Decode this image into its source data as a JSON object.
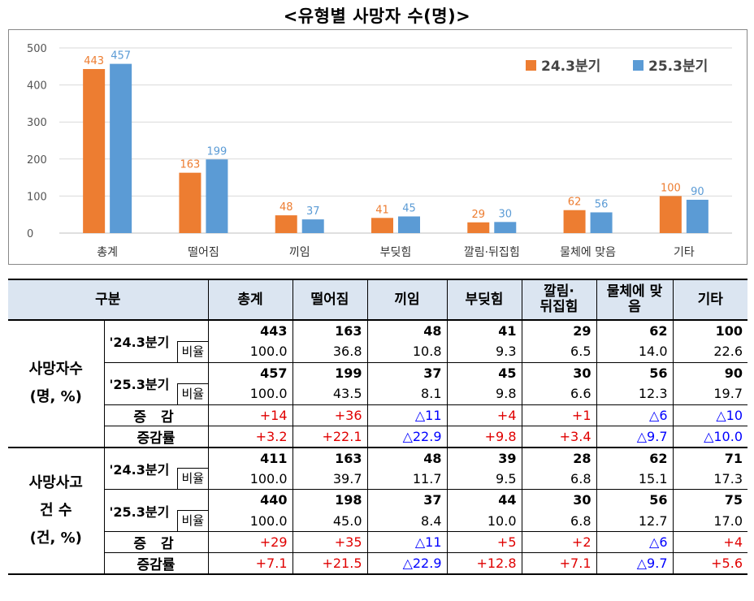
{
  "title": "<유형별 사망자 수(명)>",
  "chart_data": {
    "type": "bar",
    "categories": [
      "총계",
      "떨어짐",
      "끼임",
      "부딪힘",
      "깔림·뒤집힘",
      "물체에 맞음",
      "기타"
    ],
    "series": [
      {
        "name": "24.3분기",
        "color": "#ed7d31",
        "values": [
          443,
          163,
          48,
          41,
          29,
          62,
          100
        ]
      },
      {
        "name": "25.3분기",
        "color": "#5b9bd5",
        "values": [
          457,
          199,
          37,
          45,
          30,
          56,
          90
        ]
      }
    ],
    "ylim": [
      0,
      500
    ],
    "yticks": [
      0,
      100,
      200,
      300,
      400,
      500
    ],
    "legend": "top-right",
    "grid": true
  },
  "table": {
    "header": [
      "구분",
      "총계",
      "떨어짐",
      "끼임",
      "부딪힘",
      "깔림·\n뒤집힘",
      "물체에 맞음",
      "기타"
    ],
    "sections": [
      {
        "label_lines": [
          "사망자수",
          "(명, %)"
        ],
        "q1_label": "'24.3분기",
        "q1_counts": [
          "443",
          "163",
          "48",
          "41",
          "29",
          "62",
          "100"
        ],
        "q1_ratio_label": "비율",
        "q1_ratios": [
          "100.0",
          "36.8",
          "10.8",
          "9.3",
          "6.5",
          "14.0",
          "22.6"
        ],
        "q2_label": "'25.3분기",
        "q2_counts": [
          "457",
          "199",
          "37",
          "45",
          "30",
          "56",
          "90"
        ],
        "q2_ratio_label": "비율",
        "q2_ratios": [
          "100.0",
          "43.5",
          "8.1",
          "9.8",
          "6.6",
          "12.3",
          "19.7"
        ],
        "change_label": "증 감",
        "changes": [
          "+14",
          "+36",
          "△11",
          "+4",
          "+1",
          "△6",
          "△10"
        ],
        "rate_label": "증감률",
        "rates": [
          "+3.2",
          "+22.1",
          "△22.9",
          "+9.8",
          "+3.4",
          "△9.7",
          "△10.0"
        ]
      },
      {
        "label_lines": [
          "사망사고",
          "건 수",
          "(건, %)"
        ],
        "q1_label": "'24.3분기",
        "q1_counts": [
          "411",
          "163",
          "48",
          "39",
          "28",
          "62",
          "71"
        ],
        "q1_ratio_label": "비율",
        "q1_ratios": [
          "100.0",
          "39.7",
          "11.7",
          "9.5",
          "6.8",
          "15.1",
          "17.3"
        ],
        "q2_label": "'25.3분기",
        "q2_counts": [
          "440",
          "198",
          "37",
          "44",
          "30",
          "56",
          "75"
        ],
        "q2_ratio_label": "비율",
        "q2_ratios": [
          "100.0",
          "45.0",
          "8.4",
          "10.0",
          "6.8",
          "12.7",
          "17.0"
        ],
        "change_label": "증 감",
        "changes": [
          "+29",
          "+35",
          "△11",
          "+5",
          "+2",
          "△6",
          "+4"
        ],
        "rate_label": "증감률",
        "rates": [
          "+7.1",
          "+21.5",
          "△22.9",
          "+12.8",
          "+7.1",
          "△9.7",
          "+5.6"
        ]
      }
    ],
    "increase_color": "#e00000",
    "decrease_color": "#0000ff"
  }
}
